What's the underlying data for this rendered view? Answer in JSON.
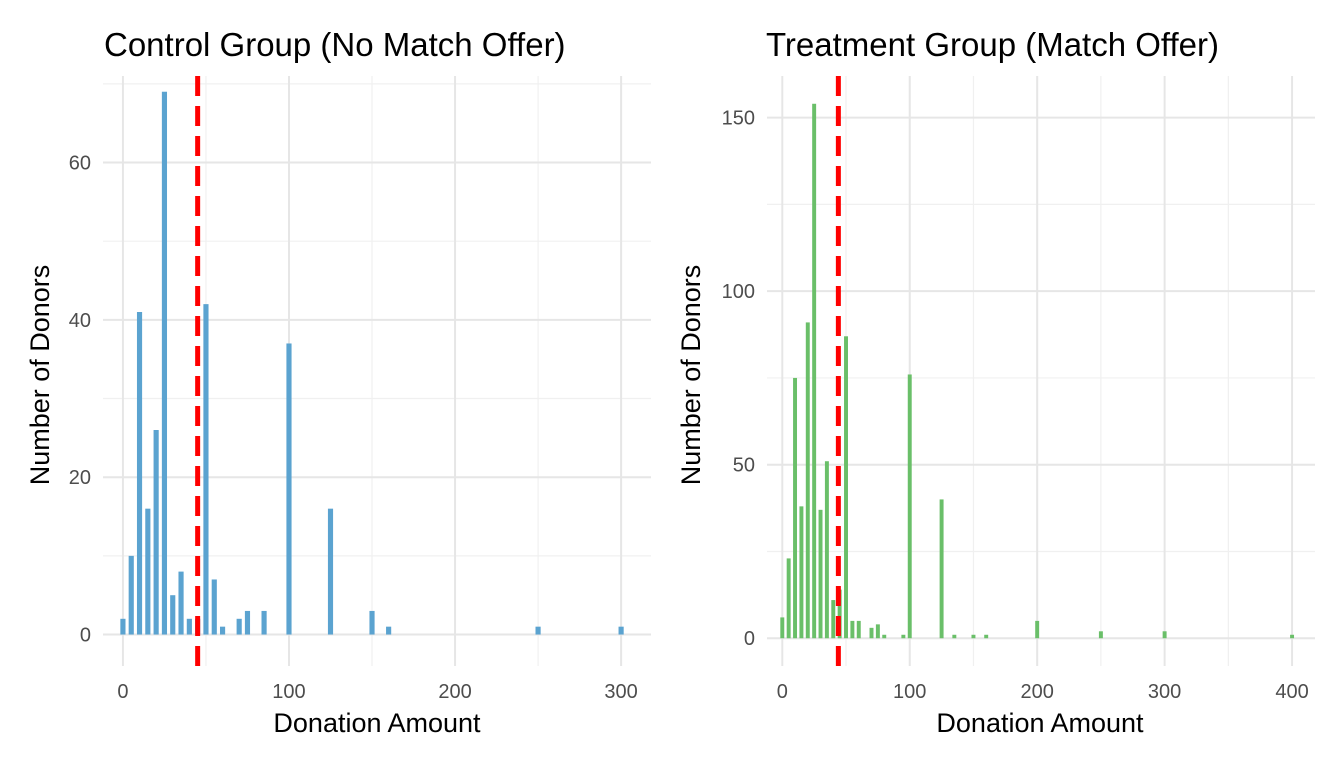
{
  "chart_data": [
    {
      "type": "bar",
      "title": "Control Group (No Match Offer)",
      "xlabel": "Donation Amount",
      "ylabel": "Number of Donors",
      "xlim": [
        -12,
        318
      ],
      "ylim": [
        -4,
        71
      ],
      "xticks": [
        0,
        100,
        200,
        300
      ],
      "yticks": [
        0,
        20,
        40,
        60
      ],
      "bar_color": "#5ba3d0",
      "mean_line": {
        "x": 45,
        "color": "#ff0000"
      },
      "grid": true,
      "bin_width": 5,
      "points": [
        {
          "x": 0,
          "y": 2
        },
        {
          "x": 5,
          "y": 10
        },
        {
          "x": 10,
          "y": 41
        },
        {
          "x": 15,
          "y": 16
        },
        {
          "x": 20,
          "y": 26
        },
        {
          "x": 25,
          "y": 69
        },
        {
          "x": 30,
          "y": 5
        },
        {
          "x": 35,
          "y": 8
        },
        {
          "x": 40,
          "y": 2
        },
        {
          "x": 45,
          "y": 2
        },
        {
          "x": 50,
          "y": 42
        },
        {
          "x": 55,
          "y": 7
        },
        {
          "x": 60,
          "y": 1
        },
        {
          "x": 70,
          "y": 2
        },
        {
          "x": 75,
          "y": 3
        },
        {
          "x": 85,
          "y": 3
        },
        {
          "x": 100,
          "y": 37
        },
        {
          "x": 125,
          "y": 16
        },
        {
          "x": 150,
          "y": 3
        },
        {
          "x": 160,
          "y": 1
        },
        {
          "x": 250,
          "y": 1
        },
        {
          "x": 300,
          "y": 1
        }
      ]
    },
    {
      "type": "bar",
      "title": "Treatment Group (Match Offer)",
      "xlabel": "Donation Amount",
      "ylabel": "Number of Donors",
      "xlim": [
        -12,
        418
      ],
      "ylim": [
        -8,
        162
      ],
      "xticks": [
        0,
        100,
        200,
        300,
        400
      ],
      "yticks": [
        0,
        50,
        100,
        150
      ],
      "bar_color": "#6abf69",
      "mean_line": {
        "x": 44,
        "color": "#ff0000"
      },
      "grid": true,
      "bin_width": 5,
      "points": [
        {
          "x": 0,
          "y": 6
        },
        {
          "x": 5,
          "y": 23
        },
        {
          "x": 10,
          "y": 75
        },
        {
          "x": 15,
          "y": 38
        },
        {
          "x": 20,
          "y": 91
        },
        {
          "x": 25,
          "y": 154
        },
        {
          "x": 30,
          "y": 37
        },
        {
          "x": 35,
          "y": 51
        },
        {
          "x": 40,
          "y": 11
        },
        {
          "x": 45,
          "y": 14
        },
        {
          "x": 50,
          "y": 87
        },
        {
          "x": 55,
          "y": 5
        },
        {
          "x": 60,
          "y": 5
        },
        {
          "x": 70,
          "y": 3
        },
        {
          "x": 75,
          "y": 4
        },
        {
          "x": 80,
          "y": 1
        },
        {
          "x": 95,
          "y": 1
        },
        {
          "x": 100,
          "y": 76
        },
        {
          "x": 125,
          "y": 40
        },
        {
          "x": 135,
          "y": 1
        },
        {
          "x": 150,
          "y": 1
        },
        {
          "x": 160,
          "y": 1
        },
        {
          "x": 200,
          "y": 5
        },
        {
          "x": 250,
          "y": 2
        },
        {
          "x": 300,
          "y": 2
        },
        {
          "x": 400,
          "y": 1
        }
      ]
    }
  ]
}
